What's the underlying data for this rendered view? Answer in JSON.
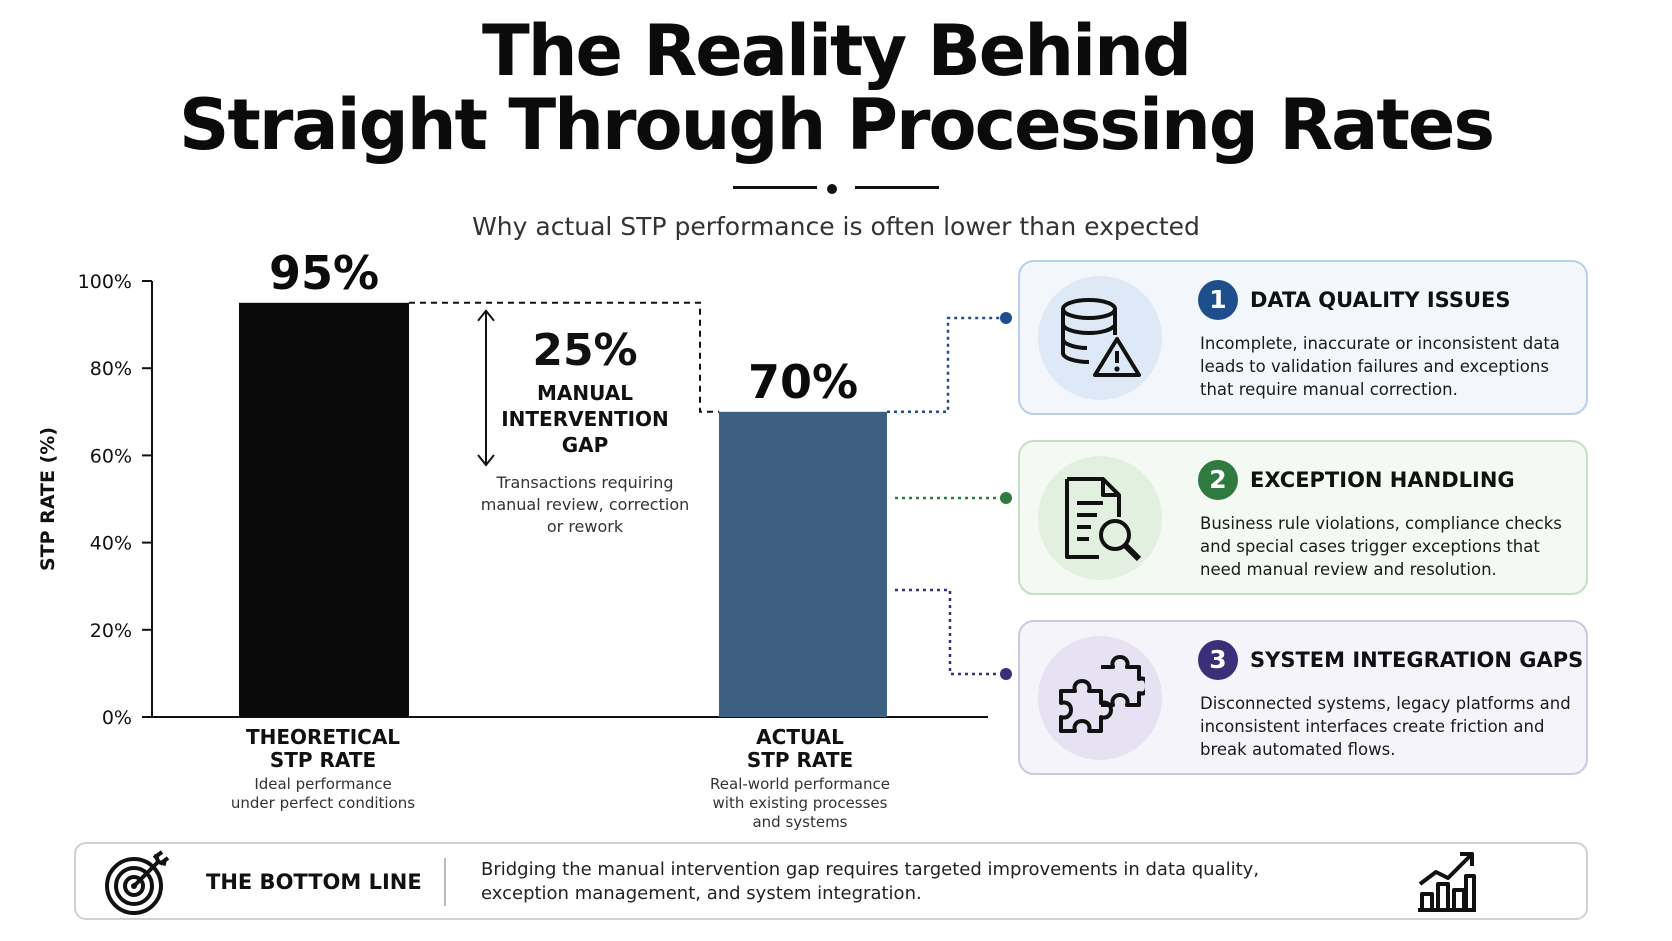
{
  "header": {
    "title_line1": "The Reality Behind",
    "title_line2": "Straight Through Processing Rates",
    "subtitle": "Why actual STP performance is often lower than expected"
  },
  "chart_data": {
    "type": "bar",
    "categories": [
      "THEORETICAL STP RATE",
      "ACTUAL STP RATE"
    ],
    "values": [
      95,
      70
    ],
    "value_labels": [
      "95%",
      "70%"
    ],
    "category_descriptions": [
      "Ideal performance under perfect conditions",
      "Real-world performance with existing processes and systems"
    ],
    "colors": [
      "#0a0a0a",
      "#3d5f82"
    ],
    "ylabel": "STP RATE (%)",
    "ylim": [
      0,
      100
    ],
    "yticks": [
      0,
      20,
      40,
      60,
      80,
      100
    ],
    "ytick_labels": [
      "0%",
      "20%",
      "40%",
      "60%",
      "80%",
      "100%"
    ],
    "grid": false,
    "annotation": {
      "value": "25%",
      "label_lines": [
        "MANUAL",
        "INTERVENTION",
        "GAP"
      ],
      "description_lines": [
        "Transactions requiring",
        "manual review, correction",
        "or rework"
      ]
    }
  },
  "categories_text": {
    "theoretical": {
      "line1": "THEORETICAL",
      "line2": "STP RATE",
      "desc1": "Ideal performance",
      "desc2": "under perfect conditions"
    },
    "actual": {
      "line1": "ACTUAL",
      "line2": "STP RATE",
      "desc1": "Real-world performance",
      "desc2": "with existing processes",
      "desc3": "and systems"
    }
  },
  "cards": [
    {
      "number": "1",
      "title": "DATA QUALITY ISSUES",
      "text": "Incomplete, inaccurate or inconsistent data leads to validation failures and exceptions that require manual correction.",
      "icon": "database-warning-icon",
      "accent": "#1f4e8c",
      "bg": "#f3f7fc",
      "border": "#b9d0ea",
      "icon_bg": "#dde9f7"
    },
    {
      "number": "2",
      "title": "EXCEPTION HANDLING",
      "text": "Business rule violations, compliance checks and special cases trigger exceptions that need manual review and resolution.",
      "icon": "document-search-icon",
      "accent": "#2f7a3f",
      "bg": "#f4f9f3",
      "border": "#c4e0c4",
      "icon_bg": "#e2f1df"
    },
    {
      "number": "3",
      "title": "SYSTEM INTEGRATION GAPS",
      "text": "Disconnected systems, legacy platforms and inconsistent interfaces create friction and break automated flows.",
      "icon": "puzzle-icon",
      "accent": "#3b2f7a",
      "bg": "#f6f4fb",
      "border": "#cfc6e6",
      "icon_bg": "#e6e1f3"
    }
  ],
  "bottom": {
    "title": "THE BOTTOM LINE",
    "text": "Bridging the manual intervention gap requires targeted improvements in data quality, exception management, and system integration."
  }
}
